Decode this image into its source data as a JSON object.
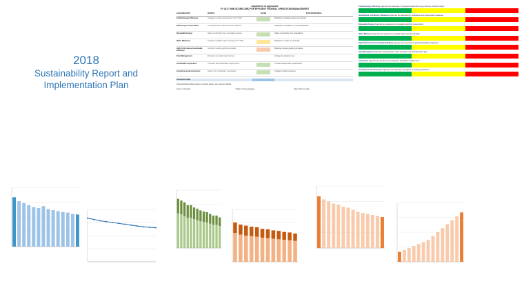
{
  "title": {
    "year": "2018",
    "line1": "Sustainability Report and",
    "line2": "Implementation Plan"
  },
  "document": {
    "agency": "Department of Agriculture",
    "heading": "FY 2017 OMB SCORECARD FOR EFFICIENT FEDERAL OPERATIONS/MANAGEMENT",
    "col_headers": [
      "GOAL/INDICATOR",
      "METRICS",
      "SCORE",
      "STATUS/PROGRESS"
    ],
    "rows": [
      {
        "goal": "Facility Energy Efficiency",
        "metric": "Change in energy use intensity vs FY 2015",
        "fill": "#c6e0b4",
        "status": "Reduction in facility energy use intensity",
        "val": ""
      },
      {
        "goal": "Efficiency & Conservation",
        "metric": "Comprehensive evaluations and measures",
        "fill": "#ffffff",
        "status": "Evaluations completed on covered facilities",
        "val": ""
      },
      {
        "goal": "Renewable Energy",
        "metric": "Share of electricity from renewable sources",
        "fill": "#c6e0b4",
        "status": "Share of electricity from renewables",
        "val": ""
      },
      {
        "goal": "Water Efficiency",
        "metric": "Change in potable water intensity vs FY 2007",
        "fill": "#ffe699",
        "status": "Reduction in water use intensity",
        "val": ""
      },
      {
        "goal": "High Performance Sustainable Buildings",
        "metric": "Inventory meeting guiding principles",
        "fill": "#f8cbad",
        "status": "Buildings meeting guiding principles",
        "val": ""
      },
      {
        "goal": "Fleet Management",
        "metric": "Petroleum and alternative fuel use",
        "fill": "#ffffff",
        "status": "Change in petroleum use",
        "val": ""
      },
      {
        "goal": "Sustainable Acquisition",
        "metric": "Contracts with sustainable requirements",
        "fill": "#c6e0b4",
        "status": "Contract actions with requirements",
        "val": ""
      },
      {
        "goal": "Greenhouse Gas Emissions",
        "metric": "Scope 1 & 2 and Scope 3 emissions",
        "fill": "#c6e0b4",
        "status": "Change in GHG emissions",
        "val": ""
      }
    ],
    "total_label": "Scorecard totals",
    "note": "Scorecard data reflects agency reported values; see notes for details.",
    "legend": [
      "Green = On track",
      "Yellow = Some progress",
      "Red = Not on track"
    ]
  },
  "notes": [
    {
      "lead": "Facility Energy Efficiency",
      "text": "Agencies are assessed on progress toward the energy intensity reduction target.",
      "colors": [
        "#00b050",
        "#ffff00",
        "#ff0000"
      ]
    },
    {
      "lead": "Identification of Efficiency Measures",
      "text": "Agencies are assessed on evaluations and implemented measures.",
      "colors": [
        "#00b050",
        "#ffff00",
        "#ff0000"
      ]
    },
    {
      "lead": "Renewable Energy",
      "text": "Agencies are assessed on renewable electricity consumption.",
      "colors": [
        "#00b050",
        "#ffff00",
        "#ff0000"
      ]
    },
    {
      "lead": "Water Efficiency",
      "text": "Agencies are assessed on potable water intensity reduction.",
      "colors": [
        "#00b050",
        "#ffff00",
        "#ff0000"
      ]
    },
    {
      "lead": "High Performance Sustainable Buildings",
      "text": "Agencies are assessed on guiding principles compliance.",
      "colors": [
        "#00b050",
        "#ffff00",
        "#ff0000"
      ]
    },
    {
      "lead": "Fleet Management",
      "text": "Agencies are assessed on fleet petroleum use and alternative fuel.",
      "colors": [
        "#00b050",
        "#ffff00",
        "#ff0000"
      ]
    },
    {
      "lead": "Acquisition",
      "text": "Agencies are assessed on sustainable acquisition requirements.",
      "colors": [
        "#00b050",
        "#ffff00",
        "#ff0000"
      ]
    },
    {
      "lead": "Greenhouse Gas Emissions",
      "text": "Agencies are assessed on progress in reducing emissions.",
      "colors": [
        "#00b050",
        "#ffff00",
        "#ff0000"
      ]
    }
  ],
  "chart_data": [
    {
      "type": "bar",
      "values": [
        100,
        92,
        88,
        84,
        80,
        78,
        82,
        76,
        74,
        72,
        70,
        69,
        66,
        65
      ],
      "highlight_color": "#3f97c8",
      "base_color": "#9dc3e6",
      "ylim": [
        0,
        120
      ]
    },
    {
      "type": "line",
      "values": [
        100,
        97,
        94,
        92,
        90,
        88,
        86,
        84,
        82,
        80,
        79,
        78
      ],
      "color": "#2e75b6",
      "ylim": [
        0,
        120
      ]
    },
    {
      "type": "bar",
      "series": [
        {
          "values": [
            60,
            58,
            55,
            52,
            52,
            50,
            48,
            46,
            45,
            44,
            42,
            40,
            40,
            38
          ],
          "color": "#a9c98a"
        },
        {
          "values": [
            25,
            24,
            24,
            22,
            22,
            20,
            20,
            19,
            18,
            18,
            17,
            16,
            16,
            15
          ],
          "color": "#6b8e3f"
        }
      ],
      "ylim": [
        0,
        100
      ]
    },
    {
      "type": "bar",
      "series": [
        {
          "values": [
            55,
            52,
            50,
            49,
            48,
            46,
            45,
            44,
            43,
            42,
            41,
            40
          ],
          "color": "#f4b183"
        },
        {
          "values": [
            20,
            19,
            19,
            18,
            18,
            17,
            17,
            16,
            16,
            15,
            15,
            14
          ],
          "color": "#c55a11"
        }
      ],
      "ylim": [
        0,
        100
      ]
    },
    {
      "type": "bar",
      "values": [
        100,
        94,
        90,
        86,
        84,
        80,
        78,
        74,
        70,
        68,
        66,
        64,
        62,
        60
      ],
      "highlight_color": "#ed7d31",
      "base_color": "#f8cbad",
      "ylim": [
        0,
        120
      ]
    },
    {
      "type": "bar",
      "values": [
        10,
        12,
        14,
        16,
        18,
        20,
        22,
        26,
        30,
        34,
        38,
        42,
        46,
        50
      ],
      "highlight_color": "#ed7d31",
      "base_color": "#f8cbad",
      "ylim": [
        0,
        60
      ]
    }
  ]
}
